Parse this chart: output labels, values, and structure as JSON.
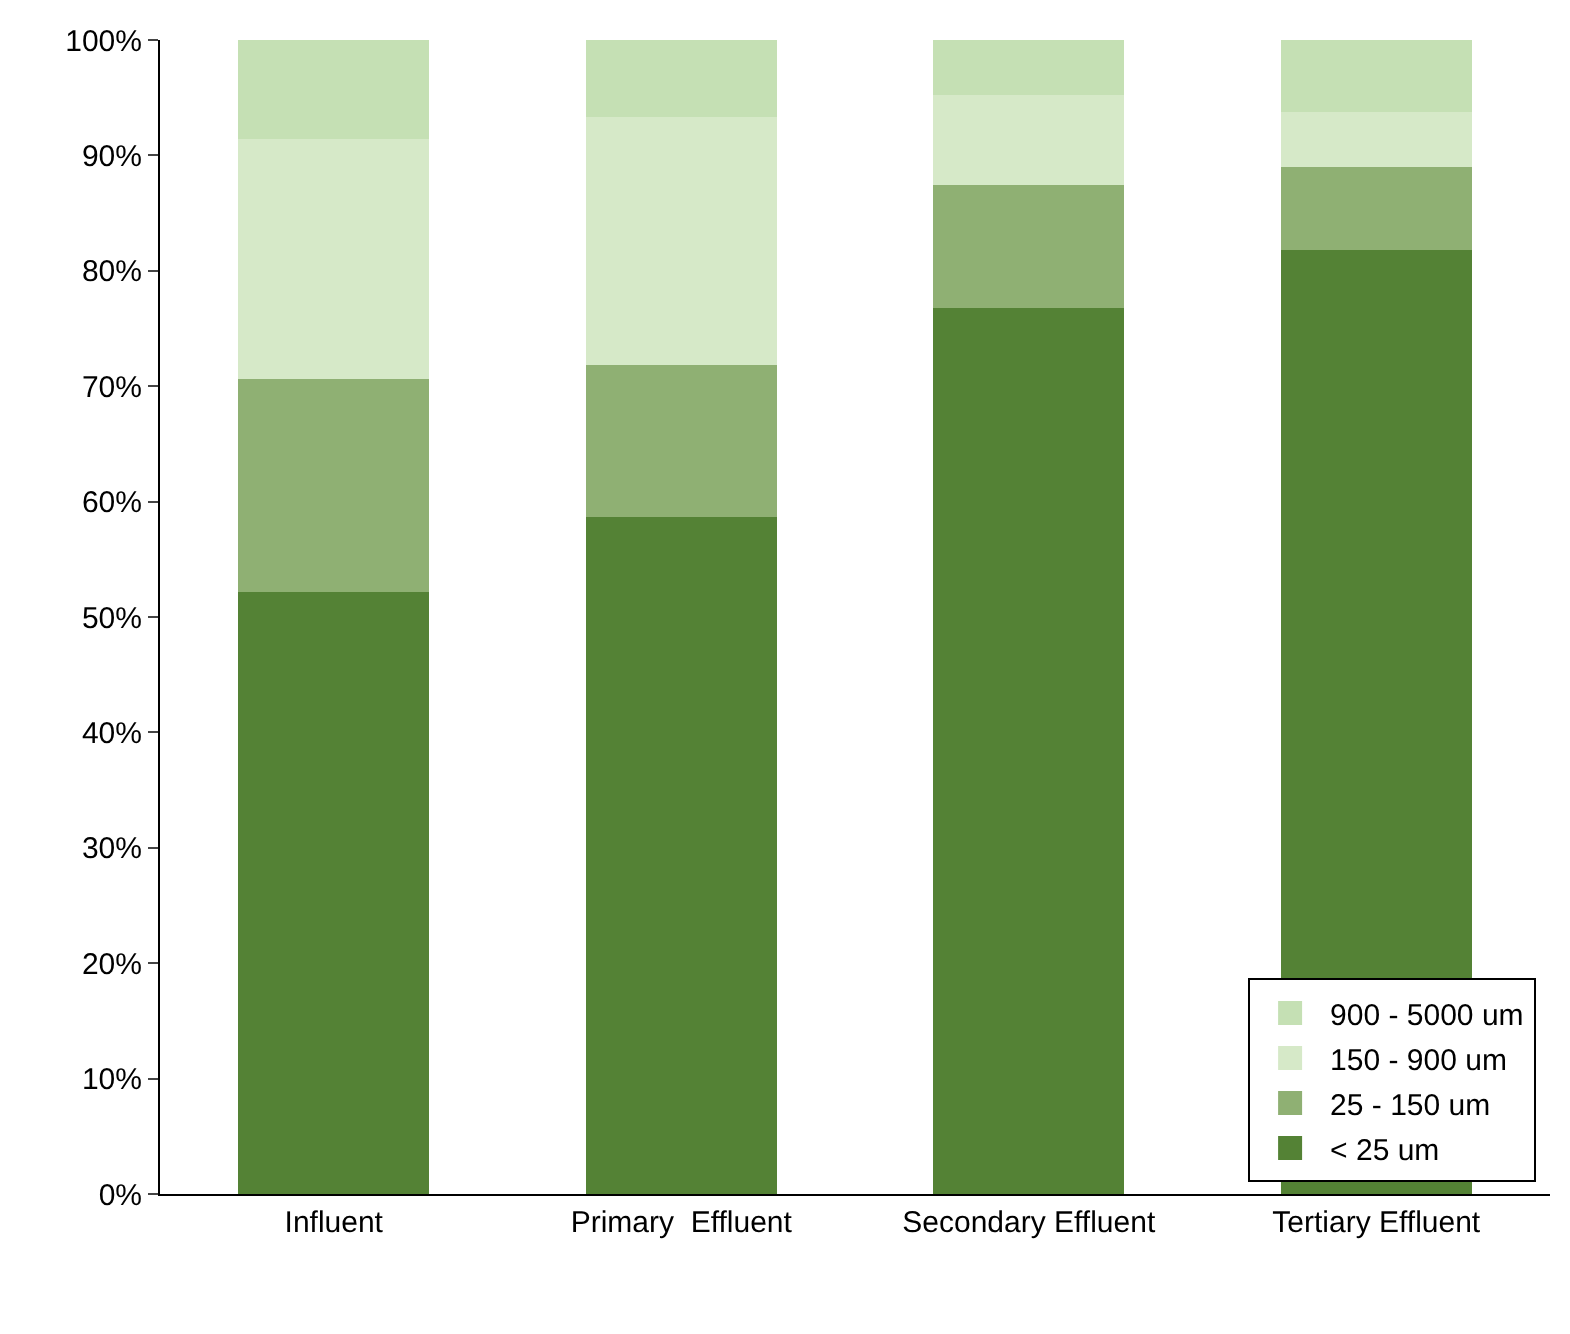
{
  "chart_data": {
    "type": "bar",
    "stacked": true,
    "categories": [
      "Influent",
      "Primary  Effluent",
      "Secondary Effluent",
      "Tertiary Effluent"
    ],
    "series": [
      {
        "name": "< 25 um",
        "color": "#548235",
        "values": [
          52.2,
          58.7,
          76.8,
          81.8
        ]
      },
      {
        "name": "25 - 150 um",
        "color": "#8fb073",
        "values": [
          18.4,
          13.1,
          10.6,
          7.2
        ]
      },
      {
        "name": "150 - 900 um",
        "color": "#d6e9c8",
        "values": [
          20.8,
          21.5,
          7.8,
          4.8
        ]
      },
      {
        "name": "900 - 5000 um",
        "color": "#c5e0b4",
        "values": [
          8.6,
          6.7,
          4.8,
          6.2
        ]
      }
    ],
    "ylim": [
      0,
      100
    ],
    "yticks": [
      {
        "value": 0,
        "label": "0%"
      },
      {
        "value": 10,
        "label": "10%"
      },
      {
        "value": 20,
        "label": "20%"
      },
      {
        "value": 30,
        "label": "30%"
      },
      {
        "value": 40,
        "label": "40%"
      },
      {
        "value": 50,
        "label": "50%"
      },
      {
        "value": 60,
        "label": "60%"
      },
      {
        "value": 70,
        "label": "70%"
      },
      {
        "value": 80,
        "label": "80%"
      },
      {
        "value": 90,
        "label": "90%"
      },
      {
        "value": 100,
        "label": "100%"
      }
    ],
    "grid": false,
    "legend": "bottom right"
  }
}
